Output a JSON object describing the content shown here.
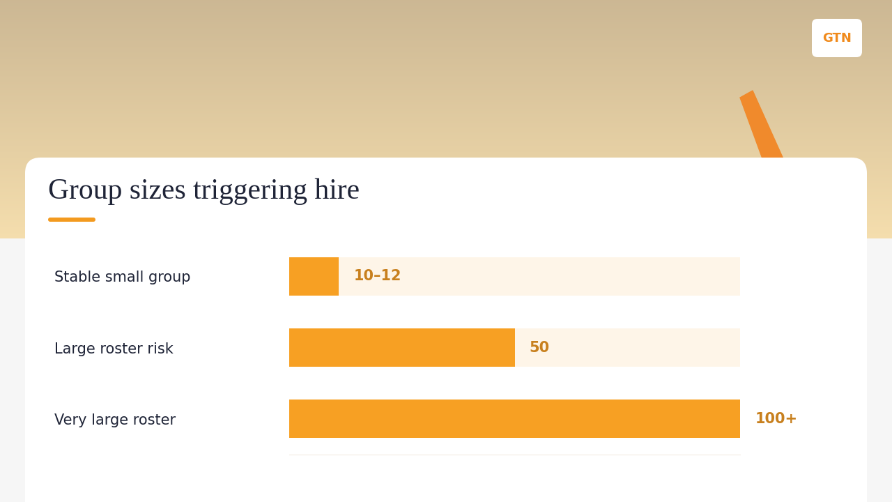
{
  "logo": "GTN",
  "chart_data": {
    "type": "bar",
    "orientation": "horizontal",
    "title": "Group sizes triggering hire",
    "categories": [
      "Stable small group",
      "Large roster risk",
      "Very large roster"
    ],
    "values": [
      11,
      50,
      100
    ],
    "value_labels": [
      "10–12",
      "50",
      "100+"
    ],
    "data_labels": true,
    "color": "#F7A023",
    "xlim": [
      0,
      100
    ],
    "xticks": [],
    "tick_labels": "y",
    "grid": false
  }
}
